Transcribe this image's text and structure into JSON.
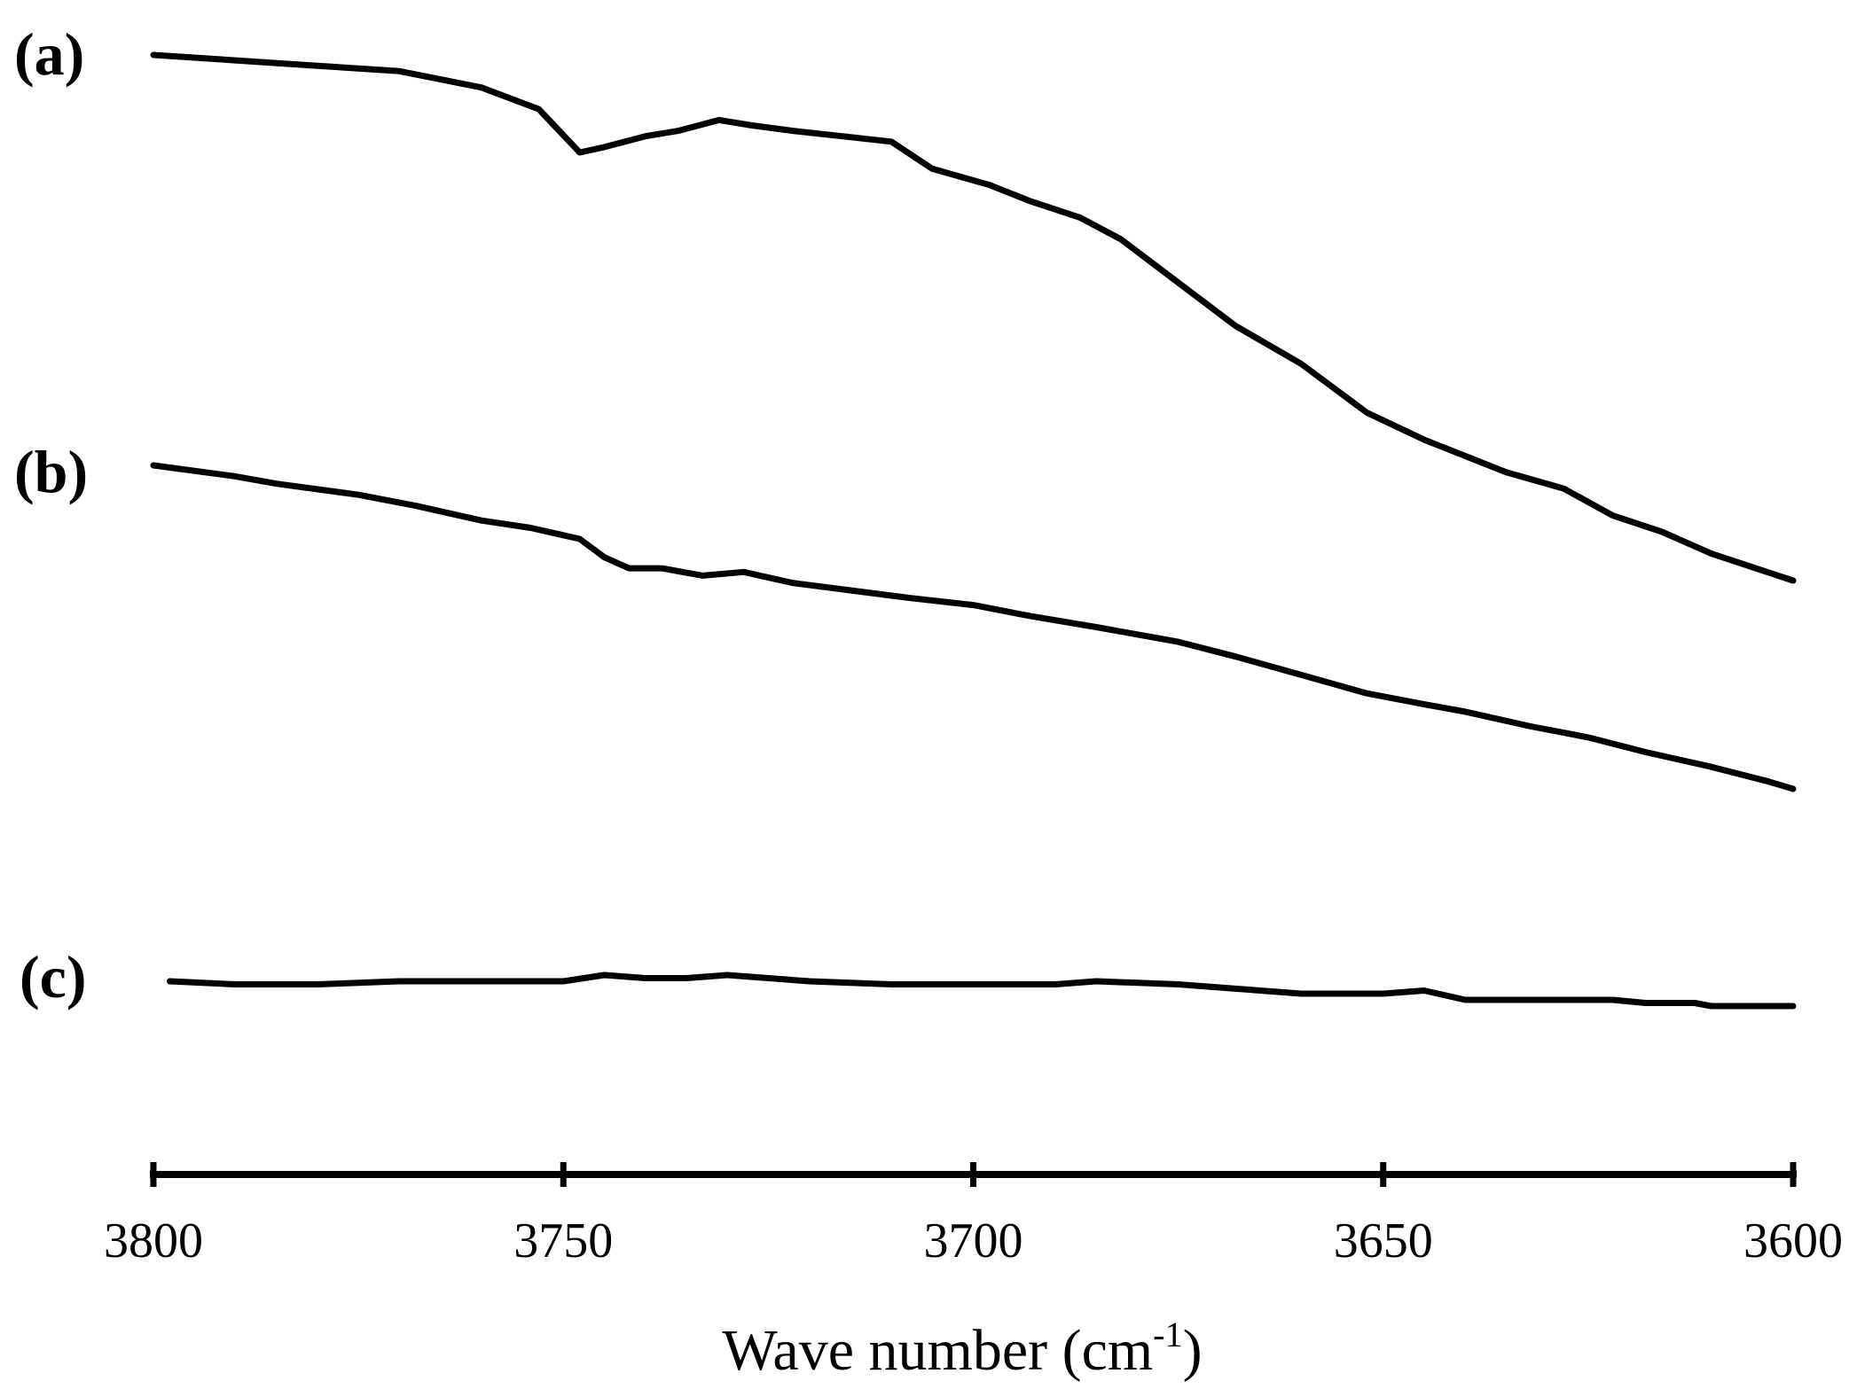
{
  "chart_data": {
    "type": "line",
    "xlabel": "Wave number  (cm",
    "xlabel_superscript": "-1",
    "xlabel_suffix": ")",
    "ylabel": "",
    "x_reversed": true,
    "xlim": [
      3800,
      3600
    ],
    "x_ticks": [
      3800,
      3750,
      3700,
      3650,
      3600
    ],
    "y_axis_visible": false,
    "grid": false,
    "series": [
      {
        "label": "(a)",
        "color": "#000000",
        "points": [
          [
            3800,
            1.0
          ],
          [
            3790,
            0.99
          ],
          [
            3780,
            0.98
          ],
          [
            3770,
            0.97
          ],
          [
            3760,
            0.94
          ],
          [
            3753,
            0.9
          ],
          [
            3748,
            0.82
          ],
          [
            3745,
            0.83
          ],
          [
            3740,
            0.85
          ],
          [
            3736,
            0.86
          ],
          [
            3731,
            0.88
          ],
          [
            3727,
            0.87
          ],
          [
            3722,
            0.86
          ],
          [
            3716,
            0.85
          ],
          [
            3710,
            0.84
          ],
          [
            3705,
            0.79
          ],
          [
            3698,
            0.76
          ],
          [
            3693,
            0.73
          ],
          [
            3687,
            0.7
          ],
          [
            3682,
            0.66
          ],
          [
            3675,
            0.58
          ],
          [
            3668,
            0.5
          ],
          [
            3660,
            0.43
          ],
          [
            3652,
            0.34
          ],
          [
            3645,
            0.29
          ],
          [
            3640,
            0.26
          ],
          [
            3635,
            0.23
          ],
          [
            3628,
            0.2
          ],
          [
            3622,
            0.15
          ],
          [
            3616,
            0.12
          ],
          [
            3610,
            0.08
          ],
          [
            3604,
            0.05
          ],
          [
            3600,
            0.03
          ]
        ]
      },
      {
        "label": "(b)",
        "color": "#000000",
        "points": [
          [
            3800,
            1.0
          ],
          [
            3790,
            0.97
          ],
          [
            3785,
            0.95
          ],
          [
            3775,
            0.92
          ],
          [
            3768,
            0.89
          ],
          [
            3760,
            0.85
          ],
          [
            3754,
            0.83
          ],
          [
            3748,
            0.8
          ],
          [
            3745,
            0.75
          ],
          [
            3742,
            0.72
          ],
          [
            3738,
            0.72
          ],
          [
            3733,
            0.7
          ],
          [
            3728,
            0.71
          ],
          [
            3722,
            0.68
          ],
          [
            3715,
            0.66
          ],
          [
            3708,
            0.64
          ],
          [
            3700,
            0.62
          ],
          [
            3693,
            0.59
          ],
          [
            3685,
            0.56
          ],
          [
            3675,
            0.52
          ],
          [
            3668,
            0.48
          ],
          [
            3660,
            0.43
          ],
          [
            3652,
            0.38
          ],
          [
            3645,
            0.35
          ],
          [
            3640,
            0.33
          ],
          [
            3632,
            0.29
          ],
          [
            3625,
            0.26
          ],
          [
            3618,
            0.22
          ],
          [
            3610,
            0.18
          ],
          [
            3603,
            0.14
          ],
          [
            3600,
            0.12
          ]
        ]
      },
      {
        "label": "(c)",
        "color": "#000000",
        "points": [
          [
            3798,
            1.0
          ],
          [
            3790,
            0.99
          ],
          [
            3780,
            0.99
          ],
          [
            3770,
            1.0
          ],
          [
            3760,
            1.0
          ],
          [
            3750,
            1.0
          ],
          [
            3745,
            1.02
          ],
          [
            3740,
            1.01
          ],
          [
            3735,
            1.01
          ],
          [
            3730,
            1.02
          ],
          [
            3720,
            1.0
          ],
          [
            3710,
            0.99
          ],
          [
            3700,
            0.99
          ],
          [
            3690,
            0.99
          ],
          [
            3685,
            1.0
          ],
          [
            3675,
            0.99
          ],
          [
            3665,
            0.97
          ],
          [
            3660,
            0.96
          ],
          [
            3650,
            0.96
          ],
          [
            3645,
            0.97
          ],
          [
            3640,
            0.94
          ],
          [
            3630,
            0.94
          ],
          [
            3622,
            0.94
          ],
          [
            3618,
            0.93
          ],
          [
            3612,
            0.93
          ],
          [
            3610,
            0.92
          ],
          [
            3600,
            0.92
          ]
        ]
      }
    ]
  }
}
